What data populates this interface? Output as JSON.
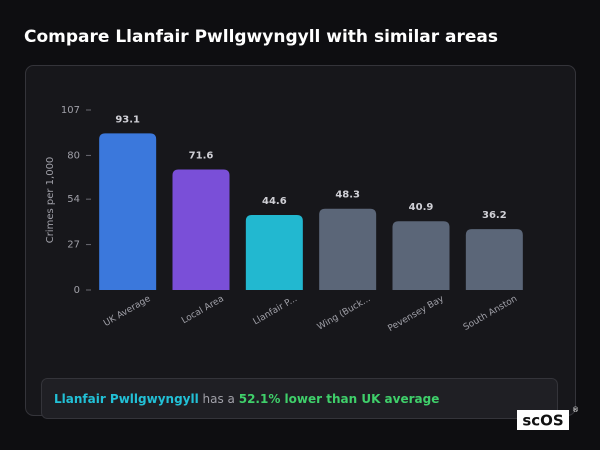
{
  "chart_data": {
    "type": "bar",
    "title": "Compare Llanfair Pwllgwyngyll with similar areas",
    "y_label": "Crimes per 1,000",
    "categories": [
      "UK Average",
      "Local Area",
      "Llanfair P...",
      "Wing (Buck...",
      "Pevensey Bay",
      "South Anston"
    ],
    "values": [
      93.1,
      71.6,
      44.6,
      48.3,
      40.9,
      36.2
    ],
    "colors": [
      "#3b78dc",
      "#7a4fd8",
      "#22b8d0",
      "#5b6678",
      "#5b6678",
      "#5b6678"
    ],
    "ylim": [
      0,
      107
    ],
    "yticks": [
      0,
      27,
      54,
      80,
      107
    ]
  },
  "summary": {
    "area": "Llanfair Pwllgwyngyll",
    "middle": " has a ",
    "highlight": "52.1% lower than UK average"
  },
  "logo": {
    "text": "scOS",
    "mark": "®"
  }
}
